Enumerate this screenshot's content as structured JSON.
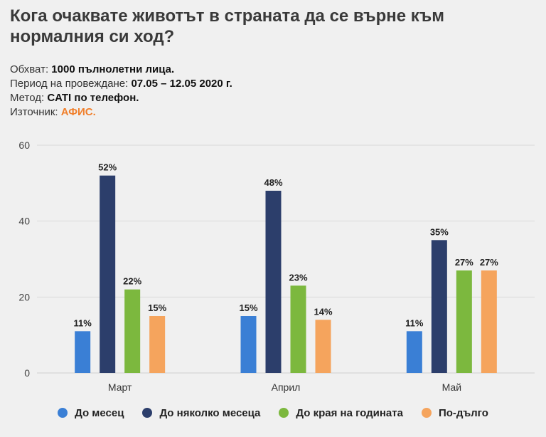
{
  "header": {
    "title": "Кога очаквате животът в страната да се върне към нормалния си ход?"
  },
  "meta": [
    {
      "label": "Обхват:",
      "value": "1000 пълнолетни лица.",
      "accent": false
    },
    {
      "label": "Период на провеждане:",
      "value": "07.05 – 12.05 2020 г.",
      "accent": false
    },
    {
      "label": "Метод:",
      "value": "CATI по телефон.",
      "accent": false
    },
    {
      "label": "Източник:",
      "value": "АФИС.",
      "accent": true
    }
  ],
  "chart_data": {
    "type": "bar",
    "title": "Кога очаквате животът в страната да се върне към нормалния си ход?",
    "xlabel": "",
    "ylabel": "",
    "ylim": [
      0,
      60
    ],
    "yticks": [
      0,
      20,
      40,
      60
    ],
    "grid": true,
    "legend_position": "bottom",
    "categories": [
      "Март",
      "Април",
      "Май"
    ],
    "series": [
      {
        "name": "До месец",
        "color": "#3a7fd5",
        "values": [
          11,
          15,
          11
        ],
        "labels": [
          "11%",
          "15%",
          "11%"
        ]
      },
      {
        "name": "До няколко месеца",
        "color": "#2c3e6b",
        "values": [
          52,
          48,
          35
        ],
        "labels": [
          "52%",
          "48%",
          "35%"
        ]
      },
      {
        "name": "До края на годината",
        "color": "#7cb83e",
        "values": [
          22,
          23,
          27
        ],
        "labels": [
          "22%",
          "23%",
          "27%"
        ]
      },
      {
        "name": "По-дълго",
        "color": "#f5a45d",
        "values": [
          15,
          14,
          27
        ],
        "labels": [
          "15%",
          "14%",
          "27%"
        ]
      }
    ]
  }
}
